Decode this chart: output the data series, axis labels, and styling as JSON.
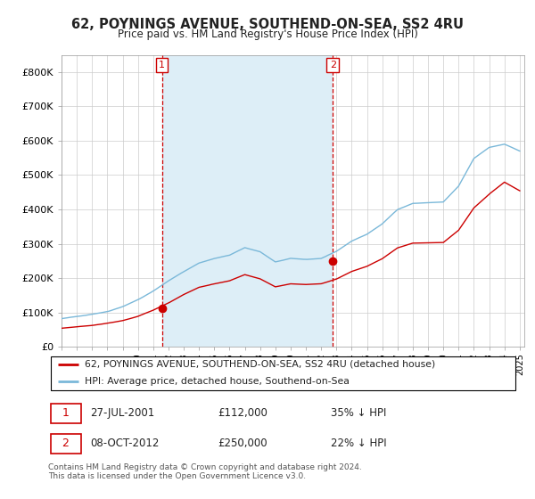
{
  "title": "62, POYNINGS AVENUE, SOUTHEND-ON-SEA, SS2 4RU",
  "subtitle": "Price paid vs. HM Land Registry's House Price Index (HPI)",
  "legend_line1": "62, POYNINGS AVENUE, SOUTHEND-ON-SEA, SS2 4RU (detached house)",
  "legend_line2": "HPI: Average price, detached house, Southend-on-Sea",
  "annotation1_text": "27-JUL-2001",
  "annotation1_price_text": "£112,000",
  "annotation1_hpi_text": "35% ↓ HPI",
  "annotation2_text": "08-OCT-2012",
  "annotation2_price_text": "£250,000",
  "annotation2_hpi_text": "22% ↓ HPI",
  "footer": "Contains HM Land Registry data © Crown copyright and database right 2024.\nThis data is licensed under the Open Government Licence v3.0.",
  "hpi_color": "#7ab8d9",
  "hpi_fill_color": "#ddeef7",
  "price_color": "#cc0000",
  "vline_color": "#cc0000",
  "ylim": [
    0,
    850000
  ],
  "yticks": [
    0,
    100000,
    200000,
    300000,
    400000,
    500000,
    600000,
    700000,
    800000
  ],
  "ytick_labels": [
    "£0",
    "£100K",
    "£200K",
    "£300K",
    "£400K",
    "£500K",
    "£600K",
    "£700K",
    "£800K"
  ],
  "sale1_year": 2001.57,
  "sale1_price": 112000,
  "sale2_year": 2012.77,
  "sale2_price": 250000,
  "xmin": 1995.0,
  "xmax": 2025.3
}
